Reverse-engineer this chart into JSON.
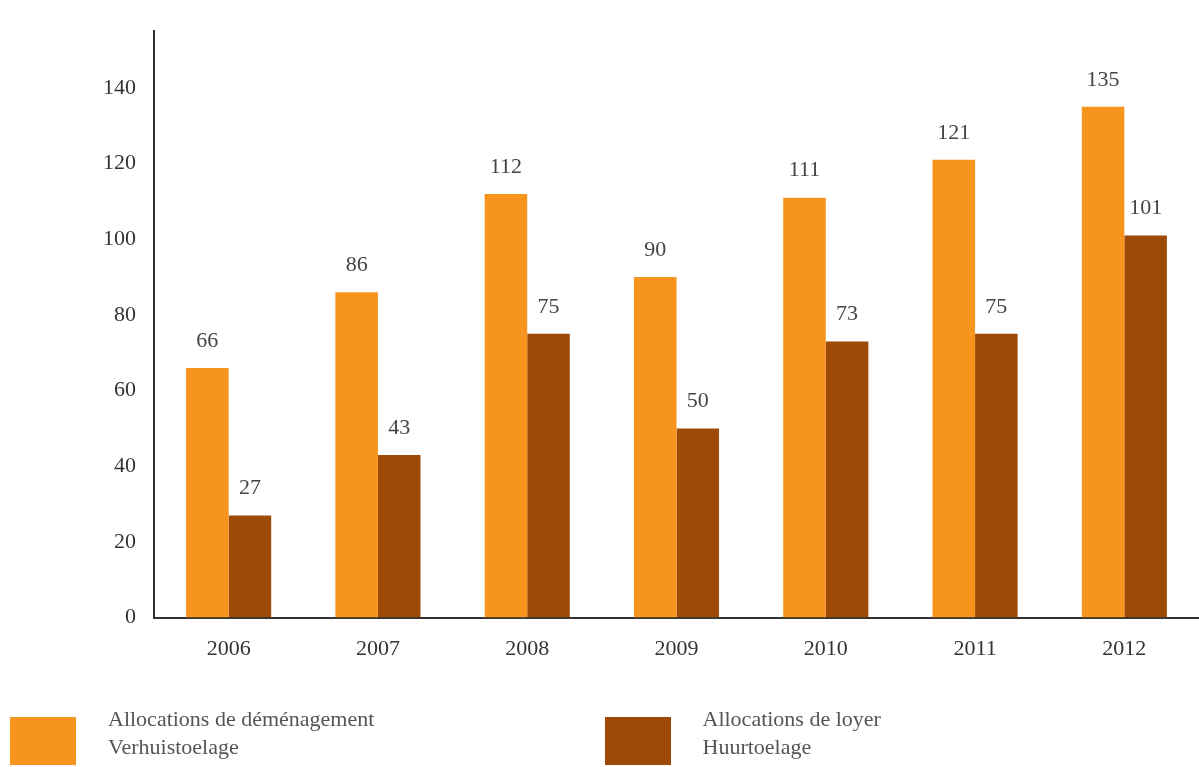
{
  "chart_data": {
    "type": "bar",
    "categories": [
      "2006",
      "2007",
      "2008",
      "2009",
      "2010",
      "2011",
      "2012"
    ],
    "series": [
      {
        "name": "Allocations de déménagement\nVerhuistoelage",
        "color": "#f7941d",
        "values": [
          66,
          86,
          112,
          90,
          111,
          121,
          135
        ]
      },
      {
        "name": "Allocations de loyer\nHuurtoelage",
        "color": "#9c4a06",
        "values": [
          27,
          43,
          75,
          50,
          73,
          75,
          101
        ]
      }
    ],
    "ylim": [
      0,
      155
    ],
    "yticks": [
      0,
      20,
      40,
      60,
      80,
      100,
      120,
      140
    ],
    "grid": false,
    "legend": "bottom",
    "data_labels": true
  }
}
